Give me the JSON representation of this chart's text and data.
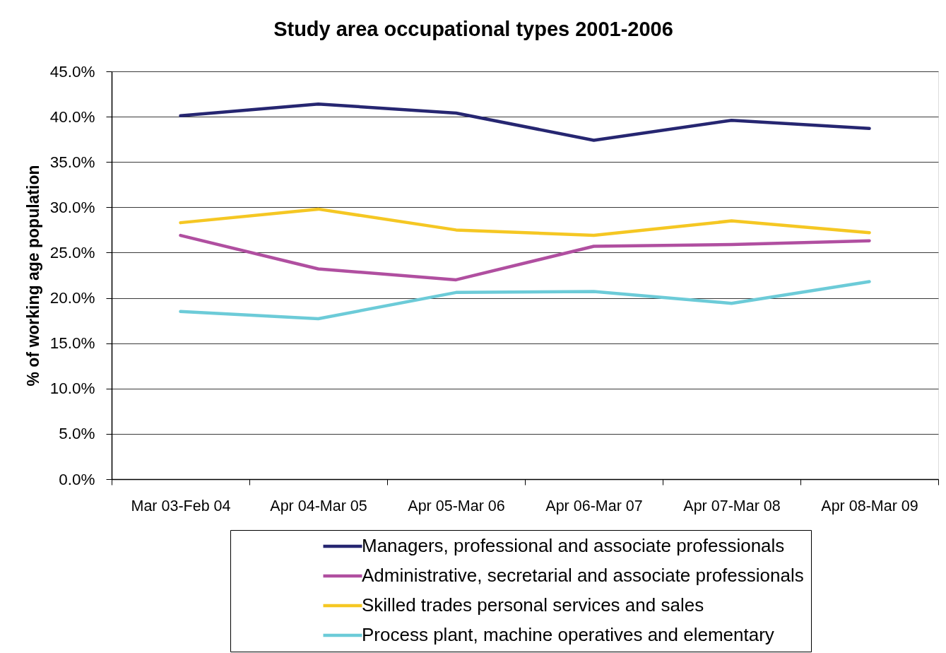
{
  "chart_data": {
    "type": "line",
    "title": "Study area occupational types 2001-2006",
    "ylabel": "% of working age population",
    "categories": [
      "Mar 03-Feb 04",
      "Apr 04-Mar 05",
      "Apr 05-Mar 06",
      "Apr 06-Mar 07",
      "Apr 07-Mar 08",
      "Apr 08-Mar 09"
    ],
    "series": [
      {
        "name": "Managers, professional and associate professionals",
        "color": "#262671",
        "values": [
          40.1,
          41.4,
          40.4,
          37.4,
          39.6,
          38.7
        ]
      },
      {
        "name": "Administrative, secretarial and associate professionals",
        "color": "#b04fa0",
        "values": [
          26.9,
          23.2,
          22.0,
          25.7,
          25.9,
          26.3
        ]
      },
      {
        "name": "Skilled trades personal services and sales",
        "color": "#f5c723",
        "values": [
          28.3,
          29.8,
          27.5,
          26.9,
          28.5,
          27.2
        ]
      },
      {
        "name": "Process plant, machine operatives and elementary",
        "color": "#6ccbd8",
        "values": [
          18.5,
          17.7,
          20.6,
          20.7,
          19.4,
          21.8
        ]
      }
    ],
    "ylim": [
      0,
      45
    ],
    "yticks": [
      {
        "value": 0,
        "label": "0.0%"
      },
      {
        "value": 5,
        "label": "5.0%"
      },
      {
        "value": 10,
        "label": "10.0%"
      },
      {
        "value": 15,
        "label": "15.0%"
      },
      {
        "value": 20,
        "label": "20.0%"
      },
      {
        "value": 25,
        "label": "25.0%"
      },
      {
        "value": 30,
        "label": "30.0%"
      },
      {
        "value": 35,
        "label": "35.0%"
      },
      {
        "value": 40,
        "label": "40.0%"
      },
      {
        "value": 45,
        "label": "45.0%"
      }
    ],
    "grid": "y",
    "legend": "bottom",
    "line_style": "solid"
  }
}
